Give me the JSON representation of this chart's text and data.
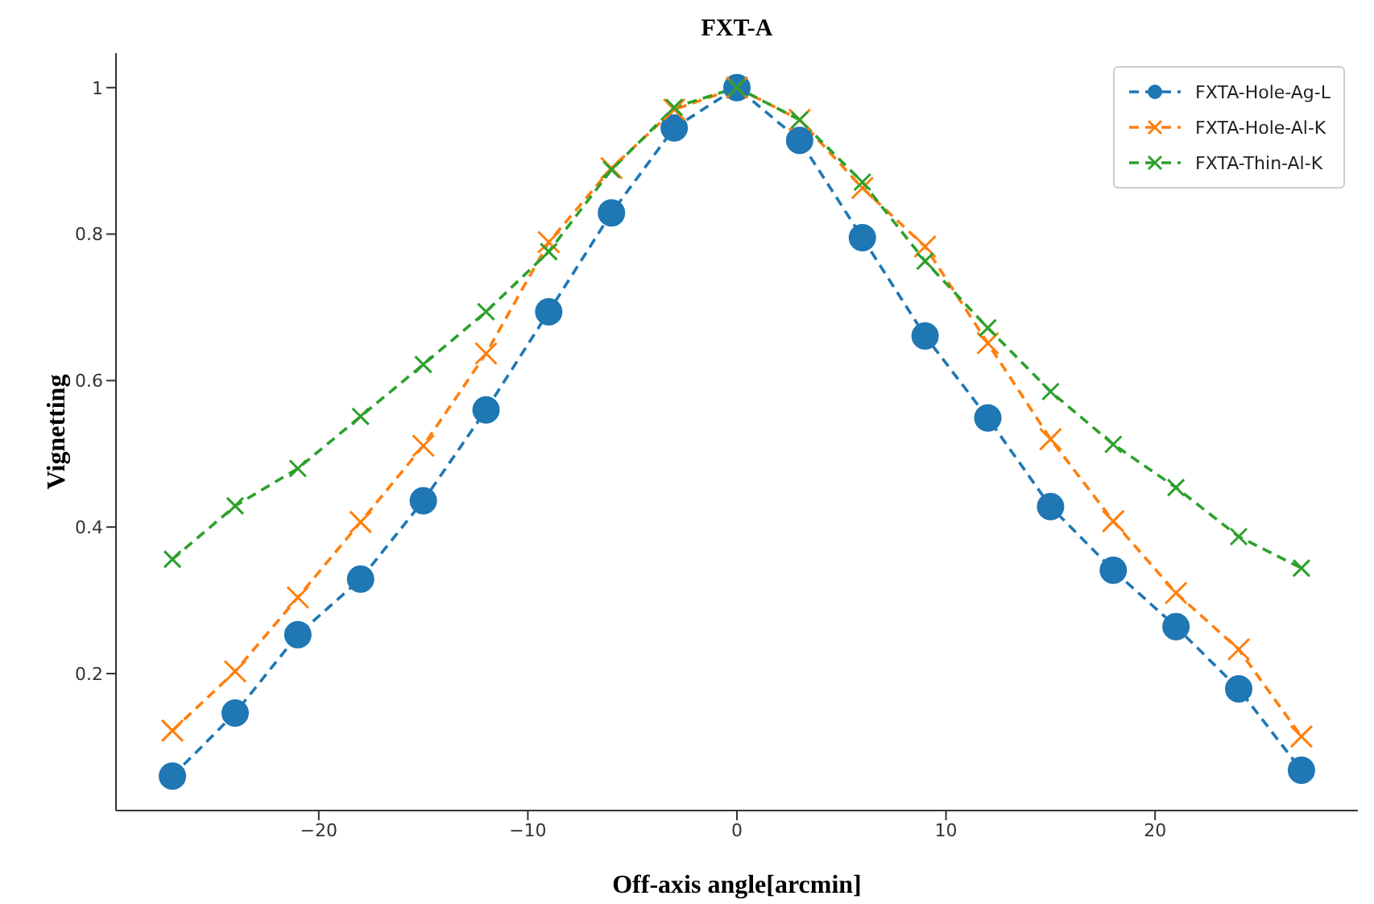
{
  "chart_data": {
    "type": "line",
    "title": "FXT-A",
    "xlabel": "Off-axis angle[arcmin]",
    "ylabel": "Vignetting",
    "x": [
      -27,
      -24,
      -21,
      -18,
      -15,
      -12,
      -9,
      -6,
      -3,
      0,
      3,
      6,
      9,
      12,
      15,
      18,
      21,
      24,
      27
    ],
    "series": [
      {
        "name": "FXTA-Hole-Ag-L",
        "color": "#1f77b4",
        "marker": "circle",
        "values": [
          0.06,
          0.146,
          0.253,
          0.329,
          0.436,
          0.56,
          0.694,
          0.829,
          0.945,
          1.0,
          0.928,
          0.795,
          0.661,
          0.549,
          0.428,
          0.341,
          0.264,
          0.179,
          0.068
        ]
      },
      {
        "name": "FXTA-Hole-Al-K",
        "color": "#ff7f0e",
        "marker": "cross",
        "values": [
          0.122,
          0.203,
          0.304,
          0.407,
          0.511,
          0.637,
          0.789,
          0.89,
          0.97,
          1.0,
          0.956,
          0.863,
          0.783,
          0.651,
          0.52,
          0.408,
          0.31,
          0.233,
          0.114
        ]
      },
      {
        "name": "FXTA-Thin-Al-K",
        "color": "#2ca02c",
        "marker": "cross",
        "values": [
          0.356,
          0.429,
          0.48,
          0.551,
          0.622,
          0.694,
          0.776,
          0.888,
          0.973,
          1.0,
          0.956,
          0.871,
          0.763,
          0.672,
          0.585,
          0.513,
          0.454,
          0.387,
          0.344
        ]
      }
    ],
    "xlim": [
      -29.7,
      29.7
    ],
    "xticks": [
      -20,
      -10,
      0,
      10,
      20
    ],
    "ylim": [
      0.013,
      1.047
    ],
    "yticks": [
      0.2,
      0.4,
      0.6,
      0.8,
      1.0
    ],
    "grid": false,
    "legend": "top right",
    "line_style": "dashed"
  }
}
